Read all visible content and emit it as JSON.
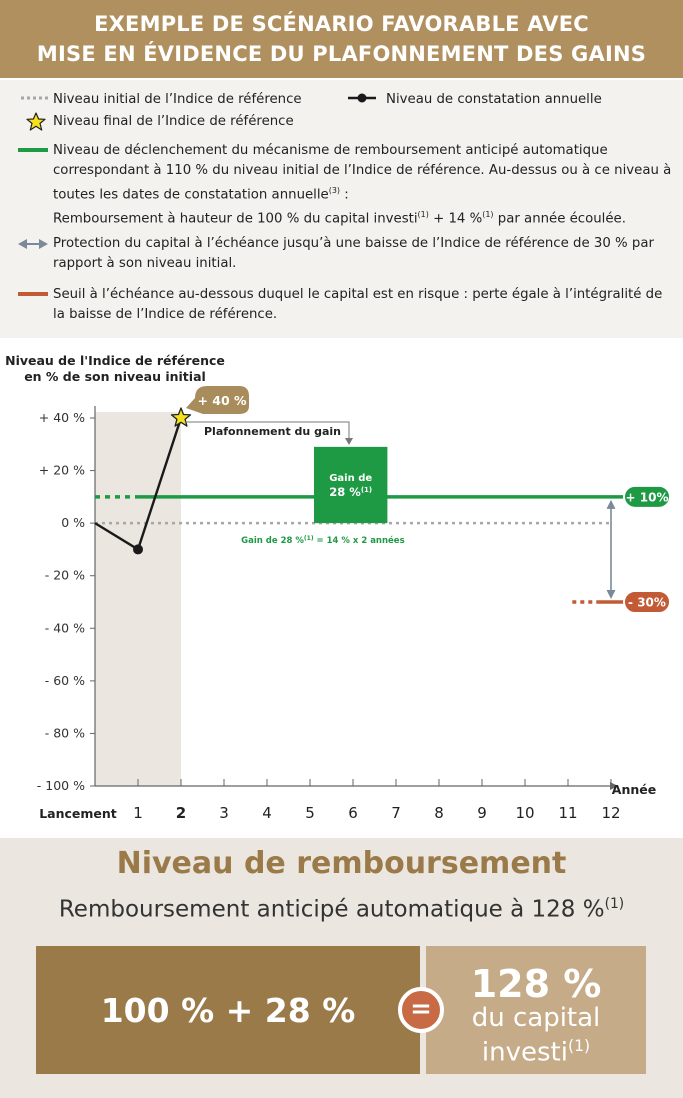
{
  "header": {
    "line1": "EXEMPLE DE SCÉNARIO FAVORABLE AVEC",
    "line2": "MISE EN ÉVIDENCE DU PLAFONNEMENT DES GAINS"
  },
  "legend": {
    "initial_level": "Niveau initial de l’Indice de référence",
    "annual_obs": "Niveau de constatation annuelle",
    "final_level": "Niveau final de l’Indice de référence",
    "trigger_1": "Niveau de déclenchement du mécanisme de remboursement anticipé automatique",
    "trigger_2": "correspondant à 110 % du niveau initial de l’Indice de référence. Au-dessus ou à ce niveau à",
    "trigger_3a": "toutes les dates de constatation annuelle",
    "trigger_3_sup": "(3)",
    "trigger_3b": " :",
    "trigger_4a": "Remboursement à hauteur de 100 % du capital investi",
    "trigger_4_sup1": "(1)",
    "trigger_4b": " + 14 %",
    "trigger_4_sup2": "(1)",
    "trigger_4c": " par année écoulée.",
    "protection_1": "Protection du capital à l’échéance jusqu’à une baisse de l’Indice de référence de 30 % par",
    "protection_2": "rapport à son niveau initial.",
    "risk_1": "Seuil à l’échéance au-dessous duquel le capital est en risque : perte égale à l’intégralité de",
    "risk_2": "la baisse de l’Indice de référence."
  },
  "chart_data": {
    "type": "line",
    "ylabel_line1": "Niveau de l'Indice de référence",
    "ylabel_line2": "en % de son niveau initial",
    "xlabel": "Année",
    "ylim": [
      -100,
      40
    ],
    "y_ticks": [
      "+ 40 %",
      "+ 20 %",
      "0 %",
      "- 20 %",
      "- 40 %",
      "- 60 %",
      "- 80 %",
      "- 100 %"
    ],
    "y_tick_values": [
      40,
      20,
      0,
      -20,
      -40,
      -60,
      -80,
      -100
    ],
    "x_ticks": [
      "Lancement",
      "1",
      "2",
      "3",
      "4",
      "5",
      "6",
      "7",
      "8",
      "9",
      "10",
      "11",
      "12"
    ],
    "x_tick_values": [
      0,
      1,
      2,
      3,
      4,
      5,
      6,
      7,
      8,
      9,
      10,
      11,
      12
    ],
    "series": [
      {
        "name": "Niveau de constatation annuelle",
        "x": [
          0,
          1,
          2
        ],
        "y": [
          0,
          -10,
          40
        ]
      }
    ],
    "initial_level": 0,
    "trigger_level": 10,
    "risk_threshold": -30,
    "shaded_period": [
      0,
      2
    ],
    "annotations": {
      "final_value": "+ 40 %",
      "cap_label": "Plafonnement du gain",
      "gain_box_line1": "Gain de",
      "gain_box_line2": "28 %",
      "gain_box_sup": "(1)",
      "gain_note_a": "Gain de 28 %",
      "gain_note_sup": "(1)",
      "gain_note_b": " = 14 % x 2 années",
      "trigger_badge": "+ 10%",
      "risk_badge": "- 30%"
    },
    "colors": {
      "performance": "#1a1a1a",
      "trigger": "#1e9a45",
      "initial": "#a7a7a7",
      "risk": "#c15a35",
      "protection": "#7a8a99",
      "shade": "#ebe6e0",
      "badge_gold": "#a88c5c"
    }
  },
  "repayment": {
    "title": "Niveau de remboursement",
    "subtitle": "Remboursement anticipé automatique à 128 %",
    "subtitle_sup": "(1)",
    "formula": "100 % + 28 %",
    "equals": "=",
    "result_value": "128 %",
    "result_line2": "du capital",
    "result_line3": "investi",
    "result_sup": "(1)"
  }
}
